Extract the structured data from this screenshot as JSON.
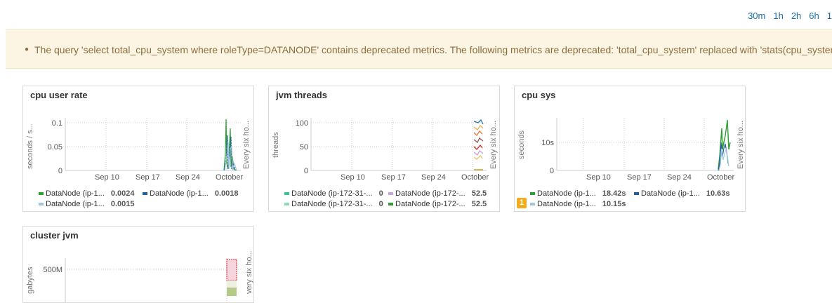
{
  "time_ranges": [
    "30m",
    "1h",
    "2h",
    "6h",
    "1"
  ],
  "warning": {
    "message": "The query 'select total_cpu_system where roleType=DATANODE' contains deprecated metrics. The following metrics are deprecated: 'total_cpu_system' replaced with 'stats(cpu_system_ra"
  },
  "panels": {
    "cpu_user_rate": {
      "title": "cpu user rate",
      "ylabel": "seconds / s...",
      "rlabel": "Every six ho...",
      "yticks": [
        "0.1",
        "0.05",
        "0"
      ],
      "xticks": [
        "Sep 10",
        "Sep 17",
        "Sep 24",
        "October"
      ],
      "legend": [
        {
          "name": "DataNode (ip-1...",
          "value": "0.0024",
          "color": "#2ca02c"
        },
        {
          "name": "DataNode (ip-1...",
          "value": "0.0018",
          "color": "#1f5f9e"
        },
        {
          "name": "DataNode (ip-1...",
          "value": "0.0015",
          "color": "#9fc5e0"
        }
      ]
    },
    "jvm_threads": {
      "title": "jvm threads",
      "ylabel": "threads",
      "rlabel": "Every six ho...",
      "yticks": [
        "100",
        "50",
        "0"
      ],
      "xticks": [
        "Sep 10",
        "Sep 17",
        "Sep 24",
        "October"
      ],
      "legend": [
        {
          "name": "DataNode (ip-172-31-...",
          "value": "0",
          "color": "#3cc39a"
        },
        {
          "name": "DataNode (ip-172-...",
          "value": "52.5",
          "color": "#c8a2d8"
        },
        {
          "name": "DataNode (ip-172-31-...",
          "value": "0",
          "color": "#8fdcb9"
        },
        {
          "name": "DataNode (ip-172-...",
          "value": "52.5",
          "color": "#2ca02c"
        }
      ]
    },
    "cpu_sys": {
      "title": "cpu sys",
      "ylabel": "seconds",
      "rlabel": "Every six ho...",
      "yticks": [
        "10s",
        "0"
      ],
      "xticks": [
        "Sep 10",
        "Sep 17",
        "Sep 24",
        "October"
      ],
      "badge": "1",
      "legend": [
        {
          "name": "DataNode (ip-1...",
          "value": "18.42s",
          "color": "#2ca02c"
        },
        {
          "name": "DataNode (ip-1...",
          "value": "10.63s",
          "color": "#1f5f9e"
        },
        {
          "name": "DataNode (ip-1...",
          "value": "10.15s",
          "color": "#9fc5e0"
        }
      ]
    },
    "cluster_jvm": {
      "title": "cluster jvm",
      "ylabel": "gabytes",
      "rlabel": "very six ho...",
      "yticks": [
        "500M"
      ]
    }
  }
}
